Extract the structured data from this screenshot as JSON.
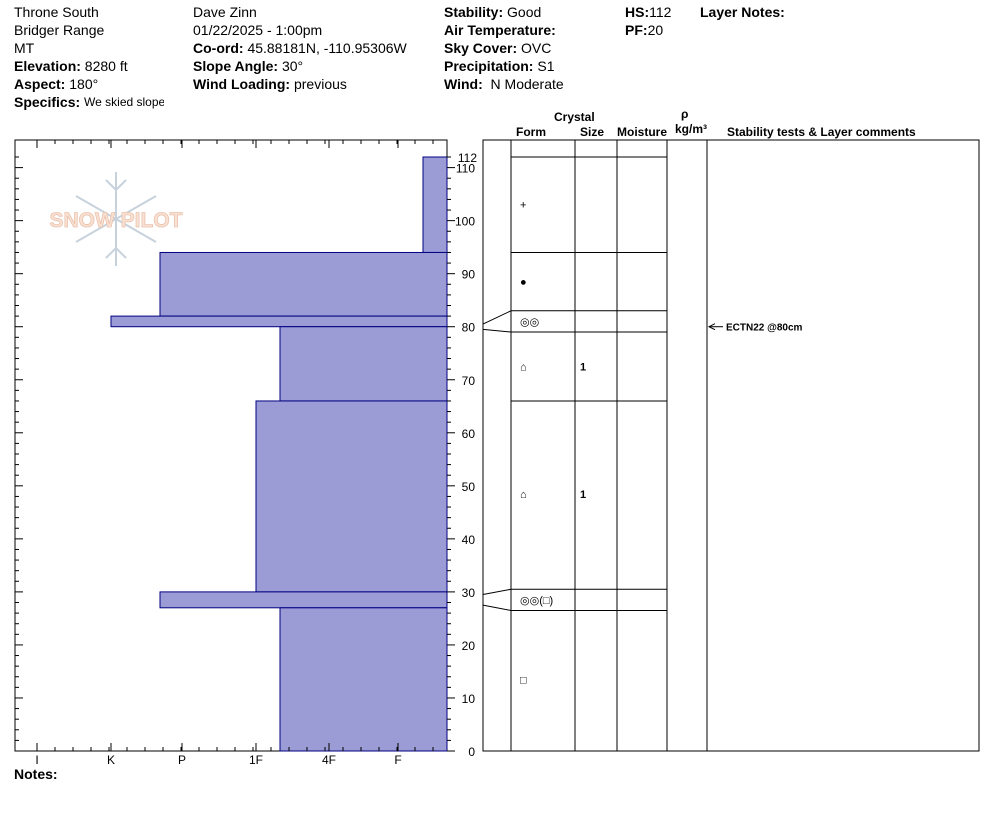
{
  "header": {
    "location": "Throne South",
    "range": "Bridger Range",
    "state": "MT",
    "elevation_label": "Elevation:",
    "elevation": "8280 ft",
    "aspect_label": "Aspect:",
    "aspect": "180°",
    "specifics_label": "Specifics:",
    "specifics": "We skied slope",
    "observer": "Dave Zinn",
    "datetime": "01/22/2025 - 1:00pm",
    "coord_label": "Co-ord:",
    "coord": "45.88181N, -110.95306W",
    "slope_label": "Slope Angle:",
    "slope": "30°",
    "wind_loading_label": "Wind Loading:",
    "wind_loading": "previous",
    "stability_label": "Stability:",
    "stability": "Good",
    "air_temp_label": "Air Temperature:",
    "air_temp": "",
    "sky_label": "Sky Cover:",
    "sky": "OVC",
    "precip_label": "Precipitation:",
    "precip": "S1",
    "wind_label": "Wind:",
    "wind": "N Moderate",
    "hs_label": "HS:",
    "hs": "112",
    "pf_label": "PF:",
    "pf": "20",
    "layer_notes_label": "Layer Notes:"
  },
  "logo_text": "SNOW PILOT",
  "columns": {
    "crystal": "Crystal",
    "form": "Form",
    "size": "Size",
    "moisture": "Moisture",
    "rho": "ρ",
    "density_unit": "kg/m³",
    "stability_comments": "Stability tests & Layer comments"
  },
  "notes_label": "Notes:",
  "colors": {
    "layer_fill": "#9b9bd6",
    "layer_stroke": "#000080"
  },
  "chart_data": {
    "type": "snow-profile",
    "depth_axis": {
      "unit": "cm",
      "min": 0,
      "max": 112,
      "ticks": [
        0,
        10,
        20,
        30,
        40,
        50,
        60,
        70,
        80,
        90,
        100,
        110
      ],
      "top_label": "112"
    },
    "hardness_axis": [
      "I",
      "K",
      "P",
      "1F",
      "4F",
      "F"
    ],
    "layers": [
      {
        "top": 112,
        "bottom": 94,
        "hardness": "F"
      },
      {
        "top": 94,
        "bottom": 82,
        "hardness": "P-"
      },
      {
        "top": 82,
        "bottom": 80,
        "hardness": "K"
      },
      {
        "top": 80,
        "bottom": 66,
        "hardness": "1F+"
      },
      {
        "top": 66,
        "bottom": 30,
        "hardness": "1F"
      },
      {
        "top": 30,
        "bottom": 27,
        "hardness": "P-"
      },
      {
        "top": 27,
        "bottom": 0,
        "hardness": "1F+"
      }
    ],
    "layer_boundaries": [
      112,
      94,
      83,
      79,
      66,
      30.5,
      26.5
    ],
    "crystals": [
      {
        "depth": 103,
        "form": "+",
        "size": ""
      },
      {
        "depth": 88.5,
        "form": "●",
        "size": ""
      },
      {
        "depth": 81,
        "form": "◎◎",
        "size": ""
      },
      {
        "depth": 72.5,
        "form": "⌂",
        "size": "1"
      },
      {
        "depth": 48.5,
        "form": "⌂",
        "size": "1"
      },
      {
        "depth": 28.5,
        "form": "◎◎(□)",
        "size": ""
      },
      {
        "depth": 13.5,
        "form": "□",
        "size": ""
      }
    ],
    "stability_tests": [
      {
        "depth": 80,
        "text": "ECTN22 @80cm"
      }
    ]
  }
}
